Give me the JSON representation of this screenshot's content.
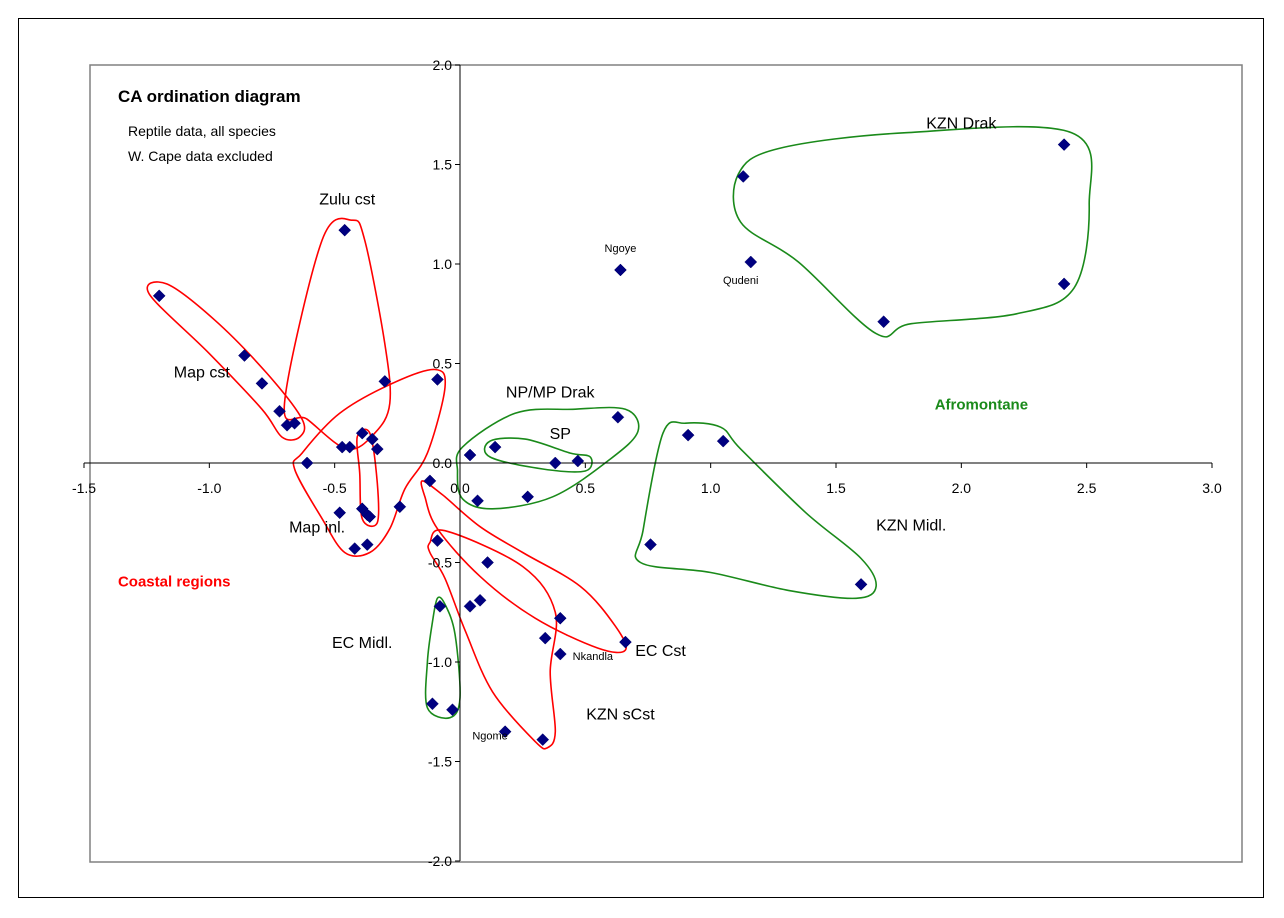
{
  "chart_data": {
    "type": "scatter",
    "title": "CA ordination diagram",
    "subtitle": [
      "Reptile data, all species",
      "W. Cape data excluded"
    ],
    "xlim": [
      -1.5,
      3.0
    ],
    "ylim": [
      -2.0,
      2.0
    ],
    "x_ticks": [
      -1.5,
      -1.0,
      -0.5,
      0.0,
      0.5,
      1.0,
      1.5,
      2.0,
      2.5,
      3.0
    ],
    "y_ticks": [
      -2.0,
      -1.5,
      -1.0,
      -0.5,
      0.0,
      0.5,
      1.0,
      1.5,
      2.0
    ],
    "x_tick_labels": [
      "-1.5",
      "-1.0",
      "-0.5",
      "0.0",
      "0.5",
      "1.0",
      "1.5",
      "2.0",
      "2.5",
      "3.0"
    ],
    "y_tick_labels": [
      "-2.0",
      "-1.5",
      "-1.0",
      "-0.5",
      "0.0",
      "0.5",
      "1.0",
      "1.5",
      "2.0"
    ],
    "grid": false,
    "points": [
      {
        "x": -1.2,
        "y": 0.84
      },
      {
        "x": -0.86,
        "y": 0.54
      },
      {
        "x": -0.79,
        "y": 0.4
      },
      {
        "x": -0.72,
        "y": 0.26
      },
      {
        "x": -0.69,
        "y": 0.19
      },
      {
        "x": -0.66,
        "y": 0.2
      },
      {
        "x": -0.46,
        "y": 1.17
      },
      {
        "x": -0.3,
        "y": 0.41
      },
      {
        "x": -0.61,
        "y": 0.0
      },
      {
        "x": -0.47,
        "y": 0.08
      },
      {
        "x": -0.44,
        "y": 0.08
      },
      {
        "x": -0.39,
        "y": 0.15
      },
      {
        "x": -0.35,
        "y": 0.12
      },
      {
        "x": -0.33,
        "y": 0.07
      },
      {
        "x": -0.09,
        "y": 0.42
      },
      {
        "x": -0.48,
        "y": -0.25
      },
      {
        "x": -0.39,
        "y": -0.23
      },
      {
        "x": -0.37,
        "y": -0.26
      },
      {
        "x": -0.36,
        "y": -0.27
      },
      {
        "x": -0.24,
        "y": -0.22
      },
      {
        "x": -0.42,
        "y": -0.43
      },
      {
        "x": -0.37,
        "y": -0.41
      },
      {
        "x": -0.12,
        "y": -0.09
      },
      {
        "x": 0.04,
        "y": 0.04
      },
      {
        "x": 0.14,
        "y": 0.08
      },
      {
        "x": 0.38,
        "y": 0.0
      },
      {
        "x": 0.47,
        "y": 0.01
      },
      {
        "x": 0.63,
        "y": 0.23
      },
      {
        "x": 0.07,
        "y": -0.19
      },
      {
        "x": 0.27,
        "y": -0.17
      },
      {
        "x": -0.09,
        "y": -0.39
      },
      {
        "x": 0.11,
        "y": -0.5
      },
      {
        "x": 0.04,
        "y": -0.72
      },
      {
        "x": 0.08,
        "y": -0.69
      },
      {
        "x": 0.4,
        "y": -0.78
      },
      {
        "x": 0.34,
        "y": -0.88
      },
      {
        "x": 0.66,
        "y": -0.9
      },
      {
        "x": 0.4,
        "y": -0.96
      },
      {
        "x": 0.18,
        "y": -1.35
      },
      {
        "x": 0.33,
        "y": -1.39
      },
      {
        "x": -0.08,
        "y": -0.72
      },
      {
        "x": -0.11,
        "y": -1.21
      },
      {
        "x": -0.03,
        "y": -1.24
      },
      {
        "x": 0.64,
        "y": 0.97
      },
      {
        "x": 1.16,
        "y": 1.01
      },
      {
        "x": 1.13,
        "y": 1.44
      },
      {
        "x": 2.41,
        "y": 1.6
      },
      {
        "x": 2.41,
        "y": 0.9
      },
      {
        "x": 1.69,
        "y": 0.71
      },
      {
        "x": 0.91,
        "y": 0.14
      },
      {
        "x": 1.05,
        "y": 0.11
      },
      {
        "x": 0.76,
        "y": -0.41
      },
      {
        "x": 1.6,
        "y": -0.61
      }
    ],
    "point_labels": [
      {
        "text": "Ngoye",
        "x": 0.64,
        "y": 1.06
      },
      {
        "text": "Qudeni",
        "x": 1.12,
        "y": 0.9
      },
      {
        "text": "Nkandla",
        "x": 0.53,
        "y": -0.99
      },
      {
        "text": "Ngome",
        "x": 0.12,
        "y": -1.39
      }
    ],
    "group_labels": [
      {
        "text": "KZN Drak",
        "x": 2.0,
        "y": 1.68,
        "color": "#000000"
      },
      {
        "text": "Zulu cst",
        "x": -0.45,
        "y": 1.3,
        "color": "#000000"
      },
      {
        "text": "Map cst",
        "x": -1.03,
        "y": 0.43,
        "color": "#000000"
      },
      {
        "text": "NP/MP Drak",
        "x": 0.36,
        "y": 0.33,
        "color": "#000000"
      },
      {
        "text": "SP",
        "x": 0.4,
        "y": 0.12,
        "color": "#000000"
      },
      {
        "text": "Map inl.",
        "x": -0.57,
        "y": -0.35,
        "color": "#000000"
      },
      {
        "text": "KZN Midl.",
        "x": 1.8,
        "y": -0.34,
        "color": "#000000"
      },
      {
        "text": "EC Cst",
        "x": 0.8,
        "y": -0.97,
        "color": "#000000"
      },
      {
        "text": "EC Midl.",
        "x": -0.39,
        "y": -0.93,
        "color": "#000000"
      },
      {
        "text": "KZN sCst",
        "x": 0.64,
        "y": -1.29,
        "color": "#000000"
      },
      {
        "text": "Afromontane",
        "x": 2.08,
        "y": 0.27,
        "color": "#1a8a1a"
      },
      {
        "text": "Coastal regions",
        "x": -1.14,
        "y": -0.62,
        "color": "#ff0000"
      }
    ],
    "groups": [
      {
        "color": "#ff0000",
        "outline": [
          [
            -1.24,
            0.85
          ],
          [
            -1.17,
            0.9
          ],
          [
            -0.98,
            0.72
          ],
          [
            -0.77,
            0.45
          ],
          [
            -0.63,
            0.22
          ],
          [
            -0.64,
            0.13
          ],
          [
            -0.71,
            0.13
          ],
          [
            -0.79,
            0.27
          ],
          [
            -1.0,
            0.55
          ]
        ]
      },
      {
        "color": "#ff0000",
        "outline": [
          [
            -0.55,
            1.12
          ],
          [
            -0.43,
            1.22
          ],
          [
            -0.38,
            1.12
          ],
          [
            -0.3,
            0.6
          ],
          [
            -0.28,
            0.3
          ],
          [
            -0.34,
            0.15
          ],
          [
            -0.45,
            0.07
          ],
          [
            -0.61,
            0.22
          ],
          [
            -0.7,
            0.3
          ]
        ]
      },
      {
        "color": "#ff0000",
        "outline": [
          [
            -0.63,
            0.05
          ],
          [
            -0.48,
            0.25
          ],
          [
            -0.27,
            0.4
          ],
          [
            -0.1,
            0.47
          ],
          [
            -0.06,
            0.38
          ],
          [
            -0.13,
            0.05
          ],
          [
            -0.22,
            -0.13
          ],
          [
            -0.28,
            -0.33
          ],
          [
            -0.36,
            -0.45
          ],
          [
            -0.46,
            -0.45
          ],
          [
            -0.55,
            -0.28
          ],
          [
            -0.66,
            -0.03
          ]
        ]
      },
      {
        "color": "#ff0000",
        "outline": [
          [
            -0.41,
            0.13
          ],
          [
            -0.36,
            0.15
          ],
          [
            -0.33,
            -0.1
          ],
          [
            -0.33,
            -0.3
          ],
          [
            -0.39,
            -0.28
          ],
          [
            -0.4,
            -0.05
          ]
        ]
      },
      {
        "color": "#1a8a1a",
        "outline": [
          [
            0.01,
            0.08
          ],
          [
            0.22,
            0.25
          ],
          [
            0.45,
            0.27
          ],
          [
            0.66,
            0.27
          ],
          [
            0.71,
            0.16
          ],
          [
            0.6,
            0.02
          ],
          [
            0.37,
            -0.17
          ],
          [
            0.13,
            -0.23
          ],
          [
            0.01,
            -0.18
          ],
          [
            -0.01,
            -0.04
          ]
        ]
      },
      {
        "color": "#1a8a1a",
        "outline": [
          [
            0.12,
            0.11
          ],
          [
            0.26,
            0.12
          ],
          [
            0.44,
            0.05
          ],
          [
            0.52,
            0.03
          ],
          [
            0.5,
            -0.04
          ],
          [
            0.33,
            -0.03
          ],
          [
            0.12,
            0.03
          ]
        ]
      },
      {
        "color": "#ff0000",
        "outline": [
          [
            -0.15,
            -0.09
          ],
          [
            -0.07,
            -0.16
          ],
          [
            0.08,
            -0.32
          ],
          [
            0.25,
            -0.45
          ],
          [
            0.48,
            -0.62
          ],
          [
            0.62,
            -0.82
          ],
          [
            0.66,
            -0.94
          ],
          [
            0.55,
            -0.93
          ],
          [
            0.3,
            -0.78
          ],
          [
            0.08,
            -0.57
          ],
          [
            -0.09,
            -0.33
          ],
          [
            -0.14,
            -0.17
          ]
        ]
      },
      {
        "color": "#ff0000",
        "outline": [
          [
            -0.12,
            -0.4
          ],
          [
            -0.06,
            -0.34
          ],
          [
            0.25,
            -0.52
          ],
          [
            0.38,
            -0.75
          ],
          [
            0.36,
            -1.05
          ],
          [
            0.38,
            -1.35
          ],
          [
            0.35,
            -1.43
          ],
          [
            0.3,
            -1.4
          ],
          [
            0.13,
            -1.15
          ],
          [
            0.02,
            -0.84
          ],
          [
            -0.06,
            -0.58
          ],
          [
            -0.12,
            -0.45
          ]
        ]
      },
      {
        "color": "#1a8a1a",
        "outline": [
          [
            -0.09,
            -0.68
          ],
          [
            -0.06,
            -0.71
          ],
          [
            -0.02,
            -0.86
          ],
          [
            0.0,
            -1.18
          ],
          [
            -0.04,
            -1.28
          ],
          [
            -0.13,
            -1.23
          ],
          [
            -0.13,
            -1.0
          ],
          [
            -0.11,
            -0.8
          ]
        ]
      },
      {
        "color": "#1a8a1a",
        "outline": [
          [
            1.11,
            1.45
          ],
          [
            1.27,
            1.58
          ],
          [
            1.78,
            1.66
          ],
          [
            2.44,
            1.66
          ],
          [
            2.51,
            1.3
          ],
          [
            2.45,
            0.88
          ],
          [
            2.22,
            0.75
          ],
          [
            1.8,
            0.7
          ],
          [
            1.66,
            0.65
          ],
          [
            1.35,
            1.01
          ],
          [
            1.12,
            1.21
          ]
        ]
      },
      {
        "color": "#1a8a1a",
        "outline": [
          [
            0.81,
            0.15
          ],
          [
            0.9,
            0.2
          ],
          [
            1.04,
            0.18
          ],
          [
            1.12,
            0.07
          ],
          [
            1.38,
            -0.25
          ],
          [
            1.6,
            -0.48
          ],
          [
            1.66,
            -0.62
          ],
          [
            1.58,
            -0.68
          ],
          [
            1.31,
            -0.64
          ],
          [
            1.0,
            -0.55
          ],
          [
            0.72,
            -0.5
          ],
          [
            0.73,
            -0.34
          ]
        ]
      }
    ]
  }
}
